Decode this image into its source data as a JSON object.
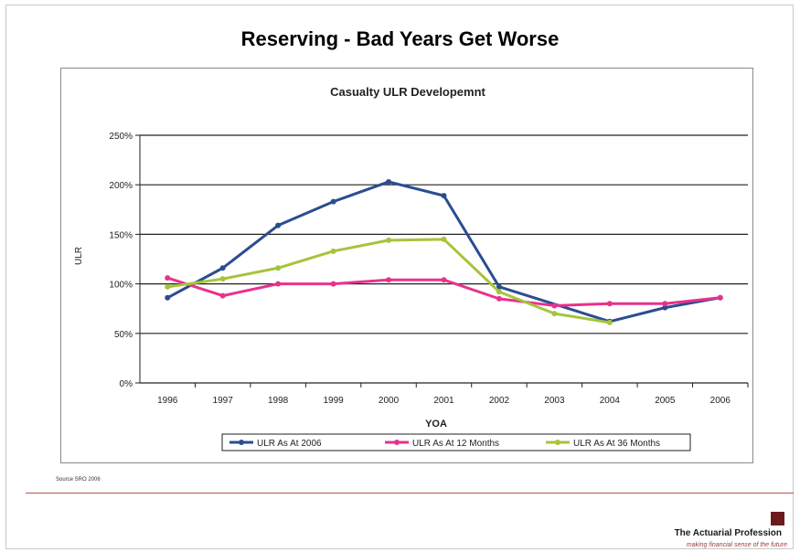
{
  "slide": {
    "title": "Reserving - Bad Years Get Worse",
    "source": "Source SRO 2006",
    "brand": "The Actuarial Profession",
    "tagline": "making financial sense of the future"
  },
  "chart_data": {
    "type": "line",
    "title": "Casualty ULR Developemnt",
    "xlabel": "YOA",
    "ylabel": "ULR",
    "categories": [
      "1996",
      "1997",
      "1998",
      "1999",
      "2000",
      "2001",
      "2002",
      "2003",
      "2004",
      "2005",
      "2006"
    ],
    "y_ticks": [
      "0%",
      "50%",
      "100%",
      "150%",
      "200%",
      "250%"
    ],
    "ylim": [
      0,
      250
    ],
    "grid": "horizontal",
    "legend_position": "bottom",
    "series": [
      {
        "name": "ULR As At 2006",
        "color": "#2a4d8f",
        "values": [
          86,
          116,
          159,
          183,
          203,
          189,
          97,
          null,
          62,
          76,
          86
        ]
      },
      {
        "name": "ULR As At 12 Months",
        "color": "#e8328c",
        "values": [
          106,
          88,
          100,
          100,
          104,
          104,
          85,
          78,
          80,
          80,
          86
        ]
      },
      {
        "name": "ULR As At 36 Months",
        "color": "#a6c43a",
        "values": [
          97,
          105,
          116,
          133,
          144,
          145,
          92,
          70,
          61,
          null,
          null
        ]
      }
    ]
  }
}
